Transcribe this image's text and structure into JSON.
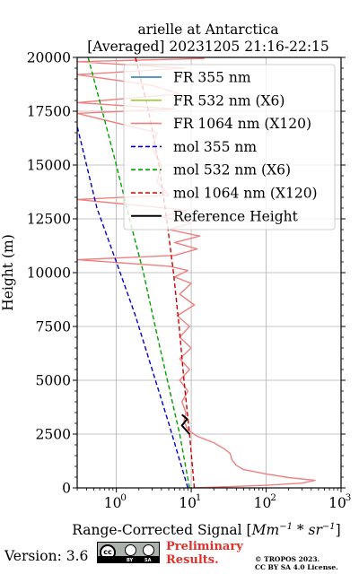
{
  "chart_data": {
    "type": "line",
    "title_line1": "arielle at Antarctica",
    "title_line2": "[Averaged] 20231205 21:16-22:15",
    "xlabel": "Range-Corrected Signal [",
    "xlabel_unit_mm": "Mm",
    "xlabel_unit_sr": "sr",
    "xlabel_exp": "−1",
    "xlabel_mul": " * ",
    "xlabel_close": "]",
    "ylabel": "Height (m)",
    "x_scale": "log",
    "xlim": [
      0.3,
      1000
    ],
    "ylim": [
      0,
      20000
    ],
    "x_ticks": [
      1,
      10,
      100,
      1000
    ],
    "x_tick_labels": [
      "10",
      "10",
      "10",
      "10"
    ],
    "x_tick_exps": [
      "0",
      "1",
      "2",
      "3"
    ],
    "y_ticks": [
      0,
      2500,
      5000,
      7500,
      10000,
      12500,
      15000,
      17500,
      20000
    ],
    "y_tick_labels": [
      "0",
      "2500",
      "5000",
      "7500",
      "10000",
      "12500",
      "15000",
      "17500",
      "20000"
    ],
    "grid": true,
    "legend_position": "upper-right",
    "legend": [
      {
        "label": "FR 355 nm",
        "color": "#1f77b4",
        "style": "solid"
      },
      {
        "label": "FR 532 nm (X6)",
        "color": "#9acd32",
        "style": "solid"
      },
      {
        "label": "FR 1064 nm (X120)",
        "color": "#f08080",
        "style": "solid"
      },
      {
        "label": "mol 355 nm",
        "color": "#0000cd",
        "style": "dashed"
      },
      {
        "label": "mol 532 nm (X6)",
        "color": "#00a000",
        "style": "dashed"
      },
      {
        "label": "mol 1064 nm (X120)",
        "color": "#cc0000",
        "style": "dashed"
      },
      {
        "label": "Reference Height",
        "color": "#000000",
        "style": "solid"
      }
    ],
    "series": [
      {
        "name": "mol 355 nm",
        "color": "#0000cd",
        "dash": true,
        "points": [
          [
            9,
            0
          ],
          [
            5,
            3000
          ],
          [
            3,
            5500
          ],
          [
            1.8,
            8000
          ],
          [
            1,
            10500
          ],
          [
            0.55,
            13000
          ],
          [
            0.3,
            16800
          ]
        ]
      },
      {
        "name": "mol 532 nm (X6)",
        "color": "#00a000",
        "dash": true,
        "points": [
          [
            9.5,
            0
          ],
          [
            7,
            2500
          ],
          [
            4.8,
            5000
          ],
          [
            3.3,
            7500
          ],
          [
            2.3,
            10000
          ],
          [
            1.5,
            12500
          ],
          [
            1,
            15000
          ],
          [
            0.65,
            17500
          ],
          [
            0.42,
            20000
          ]
        ]
      },
      {
        "name": "mol 1064 nm (X120)",
        "color": "#cc0000",
        "dash": true,
        "points": [
          [
            11,
            0
          ],
          [
            9.5,
            2500
          ],
          [
            8,
            5000
          ],
          [
            6.9,
            7500
          ],
          [
            5.8,
            10000
          ],
          [
            4.7,
            12500
          ],
          [
            3.7,
            15000
          ],
          [
            2.7,
            17500
          ],
          [
            1.8,
            20000
          ]
        ]
      },
      {
        "name": "FR 1064 nm (X120)",
        "color": "#f08080",
        "dash": false,
        "points": [
          [
            11,
            0
          ],
          [
            100,
            120
          ],
          [
            300,
            220
          ],
          [
            450,
            350
          ],
          [
            200,
            480
          ],
          [
            100,
            650
          ],
          [
            50,
            850
          ],
          [
            40,
            1050
          ],
          [
            35,
            1300
          ],
          [
            33,
            1600
          ],
          [
            28,
            1800
          ],
          [
            20,
            2100
          ],
          [
            12,
            2400
          ],
          [
            9,
            2700
          ],
          [
            8,
            3100
          ],
          [
            8.5,
            3500
          ],
          [
            7.5,
            4000
          ],
          [
            9,
            4500
          ],
          [
            7,
            5000
          ],
          [
            9.5,
            5500
          ],
          [
            7,
            6000
          ],
          [
            10,
            6500
          ],
          [
            7,
            7000
          ],
          [
            9.5,
            7500
          ],
          [
            6.5,
            8000
          ],
          [
            11,
            8500
          ],
          [
            7,
            9000
          ],
          [
            10,
            9500
          ],
          [
            6,
            9800
          ],
          [
            9,
            10100
          ],
          [
            5,
            10300
          ],
          [
            0.3,
            10600
          ],
          [
            6,
            10800
          ],
          [
            12,
            11100
          ],
          [
            6,
            11400
          ],
          [
            13,
            11700
          ],
          [
            5,
            12000
          ],
          [
            10,
            12300
          ],
          [
            4,
            12600
          ],
          [
            9,
            12900
          ],
          [
            0.3,
            13400
          ],
          [
            5,
            13600
          ],
          [
            3.5,
            14200
          ],
          [
            4,
            15000
          ],
          [
            3,
            15800
          ],
          [
            3.5,
            16500
          ],
          [
            0.3,
            17400
          ],
          [
            6,
            17600
          ],
          [
            0.3,
            17900
          ],
          [
            7,
            18300
          ],
          [
            3,
            18700
          ],
          [
            0.3,
            19200
          ],
          [
            8,
            19500
          ],
          [
            0.3,
            19800
          ],
          [
            15,
            19950
          ]
        ]
      },
      {
        "name": "Reference Height",
        "color": "#000000",
        "dash": false,
        "points": [
          [
            9.5,
            2500
          ],
          [
            7.5,
            2900
          ],
          [
            8.8,
            3200
          ],
          [
            7.5,
            3400
          ]
        ]
      }
    ]
  },
  "footer": {
    "version": "Version: 3.6",
    "cc_by": "BY",
    "cc_sa": "SA",
    "cc_mark": "cc",
    "prelim_line1": "Preliminary",
    "prelim_line2": "Results.",
    "tropos_line1": "© TROPOS 2023.",
    "tropos_line2": "CC BY SA 4.0 License."
  }
}
